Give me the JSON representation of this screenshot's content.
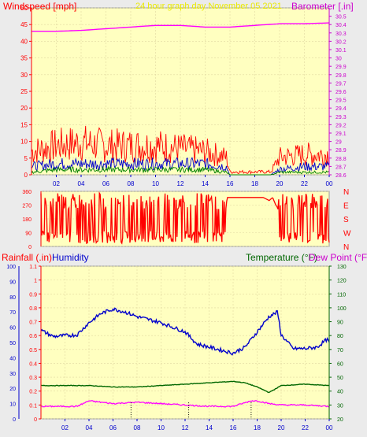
{
  "colors": {
    "plot_bg": "#ffffc0",
    "page_bg": "#ebebeb",
    "grid": "#e0d8a0",
    "wind_speed": "#ff0000",
    "wind_mid": "#0000cc",
    "wind_low": "#008000",
    "barometer": "#ff00ff",
    "title": "#ffff00",
    "humidity": "#0000cc",
    "temperature": "#006600",
    "dewpoint": "#ff00ff",
    "rainfall": "#000000",
    "axis_red": "#ff0000",
    "axis_blue": "#0000cc",
    "axis_magenta": "#cc00cc",
    "axis_green": "#006600"
  },
  "chart_data": [
    {
      "type": "line",
      "title": "24 hour graph day   November 05 2021",
      "ylabel_left": "Windspeed [mph]",
      "ylabel_right": "Barometer [.in]",
      "x_ticks": [
        "02",
        "04",
        "06",
        "08",
        "10",
        "12",
        "14",
        "16",
        "18",
        "20",
        "22",
        "00"
      ],
      "y_left": {
        "min": 0,
        "max": 50,
        "ticks": [
          0,
          5,
          10,
          15,
          20,
          25,
          30,
          35,
          40,
          45,
          50
        ]
      },
      "y_right": {
        "min": 28.6,
        "max": 30.6,
        "ticks": [
          "28.6",
          "28.7",
          "28.8",
          "28.9",
          "29",
          "29.1",
          "29.2",
          "29.3",
          "29.4",
          "29.5",
          "29.6",
          "29.7",
          "29.8",
          "29.9",
          "30",
          "30.1",
          "30.2",
          "30.3",
          "30.4",
          "30.5"
        ]
      },
      "series": [
        {
          "name": "Barometer",
          "axis": "right",
          "x": [
            0,
            2,
            4,
            6,
            8,
            10,
            12,
            14,
            16,
            18,
            20,
            22,
            24
          ],
          "values": [
            30.32,
            30.32,
            30.33,
            30.35,
            30.37,
            30.39,
            30.39,
            30.37,
            30.37,
            30.39,
            30.41,
            30.41,
            30.42
          ]
        },
        {
          "name": "Windspeed",
          "axis": "left",
          "x": [
            0,
            2,
            4,
            6,
            8,
            10,
            12,
            14,
            15.7,
            16,
            19.3,
            20,
            22,
            24
          ],
          "values": [
            8,
            10,
            11,
            10,
            10,
            10,
            9,
            8,
            6,
            1,
            1,
            6,
            7,
            7
          ]
        },
        {
          "name": "Wind mid",
          "axis": "left",
          "x": [
            0,
            2,
            4,
            6,
            8,
            10,
            12,
            14,
            15.7,
            16,
            19.3,
            20,
            22,
            24
          ],
          "values": [
            3,
            4,
            4,
            4,
            4,
            4,
            4,
            4,
            3,
            0,
            0,
            2,
            3,
            3
          ]
        },
        {
          "name": "Wind low",
          "axis": "left",
          "x": [
            0,
            2,
            4,
            6,
            8,
            10,
            12,
            14,
            15.7,
            16,
            19.3,
            20,
            22,
            24
          ],
          "values": [
            1,
            2,
            2,
            2,
            2,
            2,
            2,
            2,
            1,
            0,
            0,
            1,
            1,
            1
          ]
        }
      ]
    },
    {
      "type": "line",
      "y": {
        "min": 0,
        "max": 360,
        "ticks": [
          0,
          90,
          180,
          270,
          360
        ]
      },
      "y_right_labels": [
        "N",
        "W",
        "S",
        "E",
        "N"
      ],
      "x": [
        0,
        15.3,
        15.5,
        18.5,
        19,
        19.3,
        20,
        24
      ],
      "values": [
        180,
        180,
        320,
        320,
        300,
        320,
        180,
        180
      ]
    },
    {
      "type": "line",
      "ylabel_left": "Rainfall (.in)",
      "ylabel_left2": "Humidity",
      "ylabel_right": "Temperature (°F)",
      "ylabel_right2": "Dew Point (°F)",
      "x_ticks": [
        "02",
        "04",
        "06",
        "08",
        "10",
        "12",
        "14",
        "16",
        "18",
        "20",
        "22",
        "00"
      ],
      "y_humidity": {
        "min": 0,
        "max": 100,
        "ticks": [
          0,
          10,
          20,
          30,
          40,
          50,
          60,
          70,
          80,
          90,
          100
        ]
      },
      "y_rain": {
        "min": 0,
        "max": 1.1,
        "ticks": [
          "0",
          "0.1",
          "0.2",
          "0.3",
          "0.4",
          "0.5",
          "0.6",
          "0.7",
          "0.8",
          "0.9",
          "1",
          "1.1"
        ]
      },
      "y_temp": {
        "min": 20,
        "max": 130,
        "ticks": [
          20,
          30,
          40,
          50,
          60,
          70,
          80,
          90,
          100,
          110,
          120,
          130
        ]
      },
      "series": [
        {
          "name": "Humidity",
          "axis": "humidity",
          "x": [
            0,
            1,
            3,
            4,
            5,
            6,
            7,
            8,
            10,
            12,
            13,
            14,
            15,
            16,
            17,
            18,
            19,
            19.7,
            20,
            21,
            22,
            23,
            23.8,
            24
          ],
          "values": [
            58,
            54,
            55,
            63,
            69,
            72,
            70,
            67,
            63,
            57,
            49,
            47,
            45,
            43,
            47,
            57,
            67,
            70,
            55,
            46,
            46,
            47,
            52,
            50
          ]
        },
        {
          "name": "Temperature",
          "axis": "temp",
          "x": [
            0,
            2,
            4,
            6,
            8,
            10,
            12,
            14,
            16,
            17,
            18,
            19,
            20,
            22,
            24
          ],
          "values": [
            44,
            44,
            44,
            43,
            43,
            44,
            45,
            46,
            47,
            46,
            43,
            39,
            44,
            45,
            44
          ]
        },
        {
          "name": "Dew Point",
          "axis": "temp",
          "x": [
            0,
            2,
            3,
            4,
            6,
            8,
            10,
            12,
            14,
            16,
            17.5,
            18,
            19,
            20,
            22,
            24
          ],
          "values": [
            29,
            29,
            29,
            33,
            31,
            32,
            31,
            30,
            29,
            29,
            33,
            33,
            31,
            30,
            30,
            29
          ]
        },
        {
          "name": "Rainfall",
          "axis": "rain",
          "x": [
            7.5,
            12.3,
            17.5
          ],
          "values": [
            0.05,
            0.05,
            0.05
          ]
        }
      ]
    }
  ]
}
